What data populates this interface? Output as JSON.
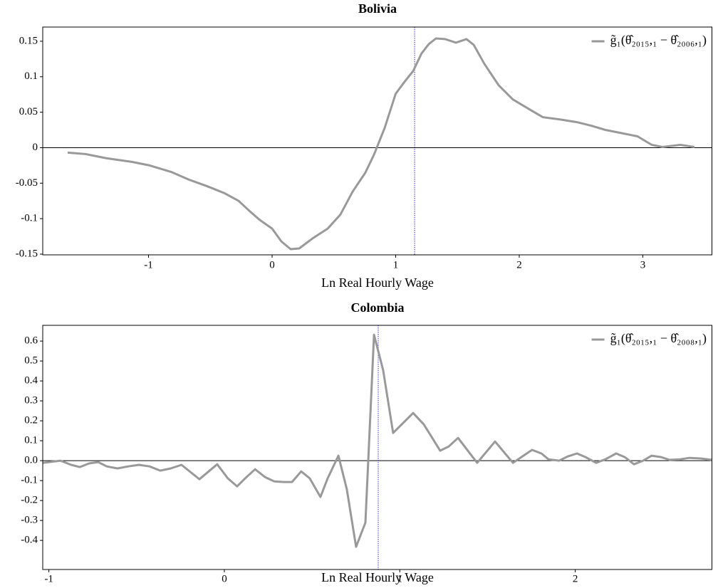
{
  "chart_data": [
    {
      "type": "line",
      "title": "Bolivia",
      "xlabel": "Ln Real Hourly Wage",
      "x": [
        -1.654,
        -1.51,
        -1.337,
        -1.135,
        -0.991,
        -0.818,
        -0.674,
        -0.53,
        -0.386,
        -0.271,
        -0.184,
        -0.098,
        0,
        0.075,
        0.15,
        0.219,
        0.334,
        0.45,
        0.553,
        0.651,
        0.755,
        0.824,
        0.911,
        1.0,
        1.072,
        1.141,
        1.21,
        1.268,
        1.326,
        1.4,
        1.487,
        1.573,
        1.631,
        1.718,
        1.833,
        1.948,
        2.092,
        2.19,
        2.323,
        2.467,
        2.582,
        2.697,
        2.813,
        2.957,
        3.072,
        3.159,
        3.303,
        3.418
      ],
      "series": [
        {
          "name": "g̃₁(θ̂₂₀₁₅,₁ − θ̂₂₀₀₆,₁)",
          "color": "#999999",
          "values": [
            -0.007,
            -0.009,
            -0.015,
            -0.02,
            -0.025,
            -0.034,
            -0.045,
            -0.054,
            -0.064,
            -0.075,
            -0.089,
            -0.102,
            -0.114,
            -0.132,
            -0.143,
            -0.142,
            -0.127,
            -0.114,
            -0.094,
            -0.062,
            -0.035,
            -0.01,
            0.028,
            0.076,
            0.093,
            0.108,
            0.133,
            0.146,
            0.154,
            0.153,
            0.148,
            0.153,
            0.145,
            0.118,
            0.088,
            0.068,
            0.053,
            0.043,
            0.04,
            0.036,
            0.031,
            0.025,
            0.021,
            0.016,
            0.004,
            0.001,
            0.004,
            0.001
          ]
        }
      ],
      "xlim": [
        -1.856,
        3.562
      ],
      "ylim": [
        -0.151,
        0.17
      ],
      "xticks": [
        -1,
        0,
        1,
        2,
        3
      ],
      "yticks": [
        -0.15,
        -0.1,
        -0.05,
        0,
        0.05,
        0.1,
        0.15
      ],
      "hline": 0,
      "vline": 1.153,
      "vline_color": "#3333cc",
      "legend": "upper right"
    },
    {
      "type": "line",
      "title": "Colombia",
      "xlabel": "Ln Real Hourly Wage",
      "x": [
        -1.035,
        -0.934,
        -0.873,
        -0.824,
        -0.771,
        -0.719,
        -0.67,
        -0.609,
        -0.548,
        -0.487,
        -0.426,
        -0.365,
        -0.305,
        -0.244,
        -0.142,
        -0.041,
        0.02,
        0.073,
        0.122,
        0.175,
        0.231,
        0.284,
        0.337,
        0.386,
        0.438,
        0.487,
        0.548,
        0.589,
        0.65,
        0.698,
        0.751,
        0.804,
        0.853,
        0.905,
        0.962,
        1.076,
        1.137,
        1.177,
        1.23,
        1.279,
        1.332,
        1.441,
        1.543,
        1.645,
        1.705,
        1.754,
        1.807,
        1.847,
        1.908,
        1.957,
        2.01,
        2.058,
        2.119,
        2.172,
        2.233,
        2.282,
        2.335,
        2.387,
        2.436,
        2.489,
        2.537,
        2.598,
        2.651,
        2.712,
        2.781
      ],
      "series": [
        {
          "name": "g̃₁(θ̂₂₀₁₅,₁ − θ̂₂₀₀₈,₁)",
          "color": "#999999",
          "values": [
            -0.011,
            0,
            -0.021,
            -0.032,
            -0.014,
            -0.007,
            -0.029,
            -0.039,
            -0.029,
            -0.021,
            -0.029,
            -0.05,
            -0.039,
            -0.021,
            -0.093,
            -0.018,
            -0.089,
            -0.129,
            -0.086,
            -0.043,
            -0.082,
            -0.104,
            -0.107,
            -0.107,
            -0.054,
            -0.089,
            -0.182,
            -0.089,
            0.025,
            -0.143,
            -0.432,
            -0.311,
            0.632,
            0.454,
            0.139,
            0.239,
            0.182,
            0.125,
            0.05,
            0.071,
            0.114,
            -0.011,
            0.096,
            -0.011,
            0.025,
            0.054,
            0.036,
            0.007,
            0,
            0.021,
            0.036,
            0.018,
            -0.011,
            0.007,
            0.036,
            0.018,
            -0.018,
            0,
            0.025,
            0.018,
            0.004,
            0.007,
            0.014,
            0.011,
            0.004
          ]
        }
      ],
      "xlim": [
        -1.035,
        2.781
      ],
      "ylim": [
        -0.546,
        0.679
      ],
      "xticks": [
        -1,
        0,
        1,
        2
      ],
      "yticks": [
        -0.4,
        -0.3,
        -0.2,
        -0.1,
        {
          "value": 0,
          "label": "0.0"
        },
        0.1,
        0.2,
        0.3,
        0.4,
        0.5,
        0.6
      ],
      "hline": 0,
      "vline": 0.877,
      "vline_color": "#3333cc",
      "legend": "upper right"
    }
  ]
}
